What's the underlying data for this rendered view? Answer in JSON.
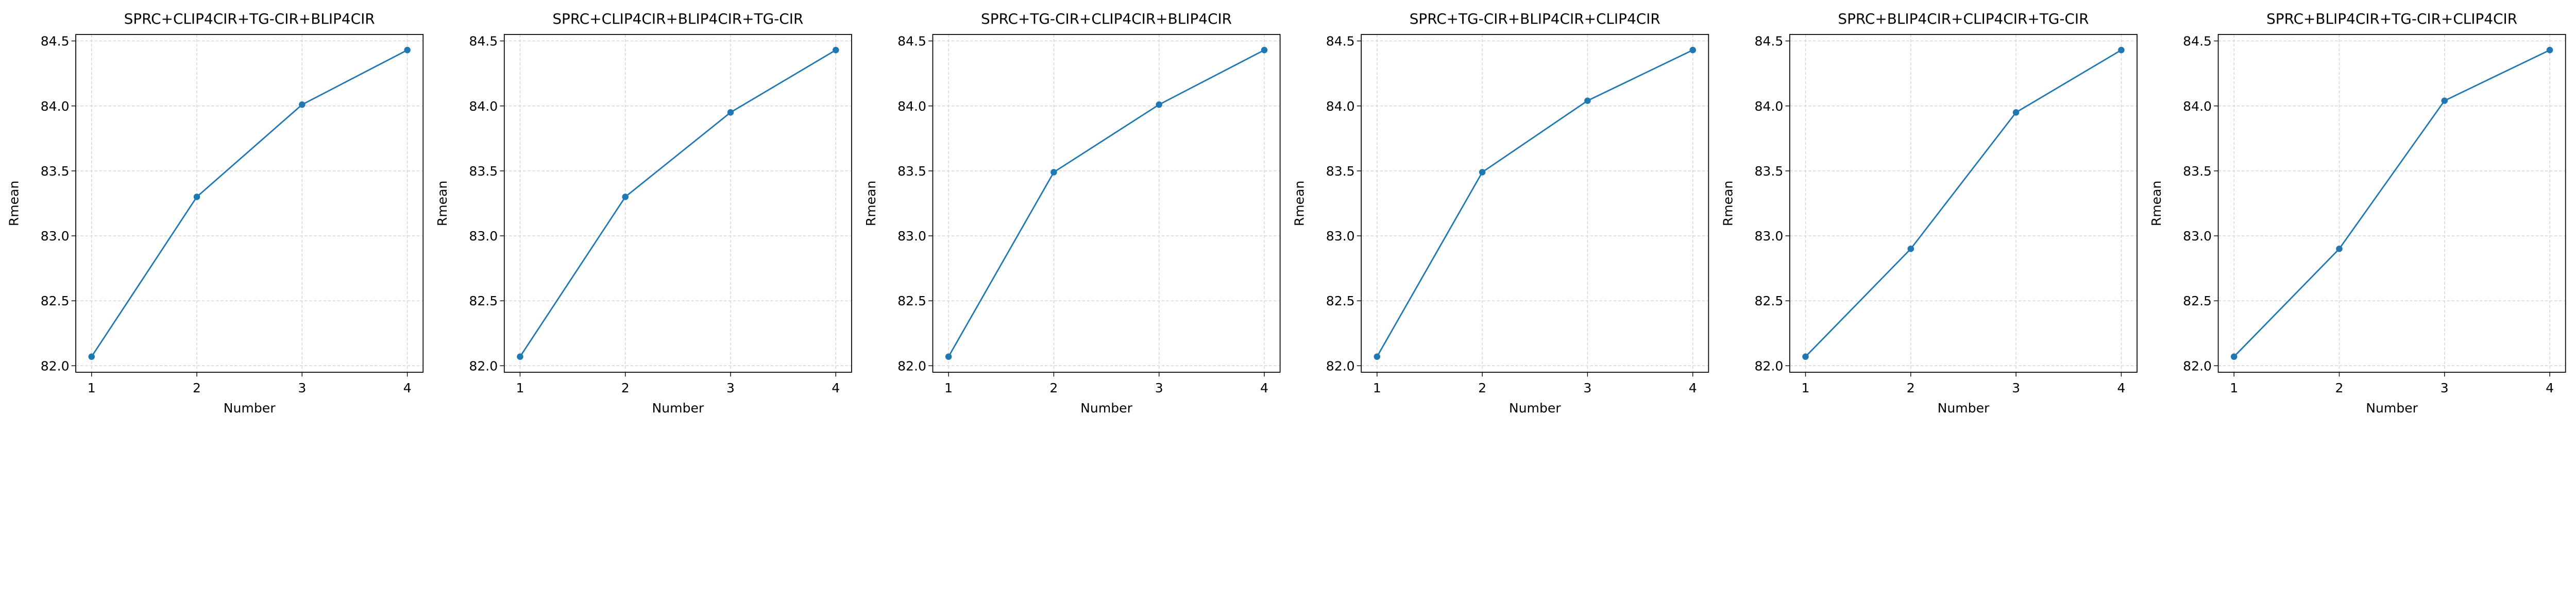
{
  "chart_data": [
    {
      "type": "line",
      "title": "SPRC+CLIP4CIR+TG-CIR+BLIP4CIR",
      "xlabel": "Number",
      "ylabel": "Rmean",
      "x": [
        1,
        2,
        3,
        4
      ],
      "y": [
        82.07,
        83.3,
        84.01,
        84.43
      ],
      "xlim": [
        0.85,
        4.15
      ],
      "ylim": [
        81.95,
        84.55
      ],
      "xticks": [
        "1",
        "2",
        "3",
        "4"
      ],
      "yticks": [
        "82.0",
        "82.5",
        "83.0",
        "83.5",
        "84.0",
        "84.5"
      ],
      "grid": true,
      "color": "#1f77b4",
      "marker": "circle"
    },
    {
      "type": "line",
      "title": "SPRC+CLIP4CIR+BLIP4CIR+TG-CIR",
      "xlabel": "Number",
      "ylabel": "Rmean",
      "x": [
        1,
        2,
        3,
        4
      ],
      "y": [
        82.07,
        83.3,
        83.95,
        84.43
      ],
      "xlim": [
        0.85,
        4.15
      ],
      "ylim": [
        81.95,
        84.55
      ],
      "xticks": [
        "1",
        "2",
        "3",
        "4"
      ],
      "yticks": [
        "82.0",
        "82.5",
        "83.0",
        "83.5",
        "84.0",
        "84.5"
      ],
      "grid": true,
      "color": "#1f77b4",
      "marker": "circle"
    },
    {
      "type": "line",
      "title": "SPRC+TG-CIR+CLIP4CIR+BLIP4CIR",
      "xlabel": "Number",
      "ylabel": "Rmean",
      "x": [
        1,
        2,
        3,
        4
      ],
      "y": [
        82.07,
        83.49,
        84.01,
        84.43
      ],
      "xlim": [
        0.85,
        4.15
      ],
      "ylim": [
        81.95,
        84.55
      ],
      "xticks": [
        "1",
        "2",
        "3",
        "4"
      ],
      "yticks": [
        "82.0",
        "82.5",
        "83.0",
        "83.5",
        "84.0",
        "84.5"
      ],
      "grid": true,
      "color": "#1f77b4",
      "marker": "circle"
    },
    {
      "type": "line",
      "title": "SPRC+TG-CIR+BLIP4CIR+CLIP4CIR",
      "xlabel": "Number",
      "ylabel": "Rmean",
      "x": [
        1,
        2,
        3,
        4
      ],
      "y": [
        82.07,
        83.49,
        84.04,
        84.43
      ],
      "xlim": [
        0.85,
        4.15
      ],
      "ylim": [
        81.95,
        84.55
      ],
      "xticks": [
        "1",
        "2",
        "3",
        "4"
      ],
      "yticks": [
        "82.0",
        "82.5",
        "83.0",
        "83.5",
        "84.0",
        "84.5"
      ],
      "grid": true,
      "color": "#1f77b4",
      "marker": "circle"
    },
    {
      "type": "line",
      "title": "SPRC+BLIP4CIR+CLIP4CIR+TG-CIR",
      "xlabel": "Number",
      "ylabel": "Rmean",
      "x": [
        1,
        2,
        3,
        4
      ],
      "y": [
        82.07,
        82.9,
        83.95,
        84.43
      ],
      "xlim": [
        0.85,
        4.15
      ],
      "ylim": [
        81.95,
        84.55
      ],
      "xticks": [
        "1",
        "2",
        "3",
        "4"
      ],
      "yticks": [
        "82.0",
        "82.5",
        "83.0",
        "83.5",
        "84.0",
        "84.5"
      ],
      "grid": true,
      "color": "#1f77b4",
      "marker": "circle"
    },
    {
      "type": "line",
      "title": "SPRC+BLIP4CIR+TG-CIR+CLIP4CIR",
      "xlabel": "Number",
      "ylabel": "Rmean",
      "x": [
        1,
        2,
        3,
        4
      ],
      "y": [
        82.07,
        82.9,
        84.04,
        84.43
      ],
      "xlim": [
        0.85,
        4.15
      ],
      "ylim": [
        81.95,
        84.55
      ],
      "xticks": [
        "1",
        "2",
        "3",
        "4"
      ],
      "yticks": [
        "82.0",
        "82.5",
        "83.0",
        "83.5",
        "84.0",
        "84.5"
      ],
      "grid": true,
      "color": "#1f77b4",
      "marker": "circle"
    }
  ]
}
